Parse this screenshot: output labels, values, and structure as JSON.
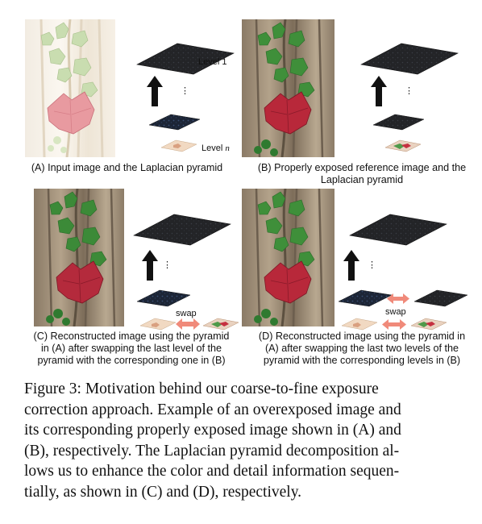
{
  "panels": [
    {
      "id": "A",
      "label_lines": [
        "(A) Input image and the Laplacian pyramid"
      ],
      "top_level_label": "Level 1",
      "bottom_level_label": "Level n",
      "photo_style": "overexposed"
    },
    {
      "id": "B",
      "label_lines": [
        "(B) Properly exposed reference image and the",
        "Laplacian pyramid"
      ],
      "photo_style": "proper"
    },
    {
      "id": "C",
      "label_lines": [
        "(C) Reconstructed image using the pyramid",
        "in (A) after swapping the last level of the",
        "pyramid with the corresponding one in (B)"
      ],
      "swap_label": "swap",
      "photo_style": "proper"
    },
    {
      "id": "D",
      "label_lines": [
        "(D) Reconstructed image using the pyramid in",
        "(A) after swapping the last two levels of the",
        "pyramid with the corresponding levels in (B)"
      ],
      "swap_label": "swap",
      "photo_style": "proper"
    }
  ],
  "caption_lines": [
    "Figure 3:  Motivation behind our coarse-to-fine exposure",
    "correction approach. Example of an overexposed image and",
    "its corresponding properly exposed image shown in (A) and",
    "(B), respectively. The Laplacian pyramid decomposition al-",
    "lows us to enhance the color and detail information sequen-",
    "tially, as shown in (C) and (D), respectively."
  ],
  "colors": {
    "leaf_green": "#3f8f3a",
    "leaf_red": "#b8283a",
    "bark": "#9c8a72",
    "pyramid_dark": "#1e1e1e",
    "swap_arrow": "#f08a7a"
  }
}
